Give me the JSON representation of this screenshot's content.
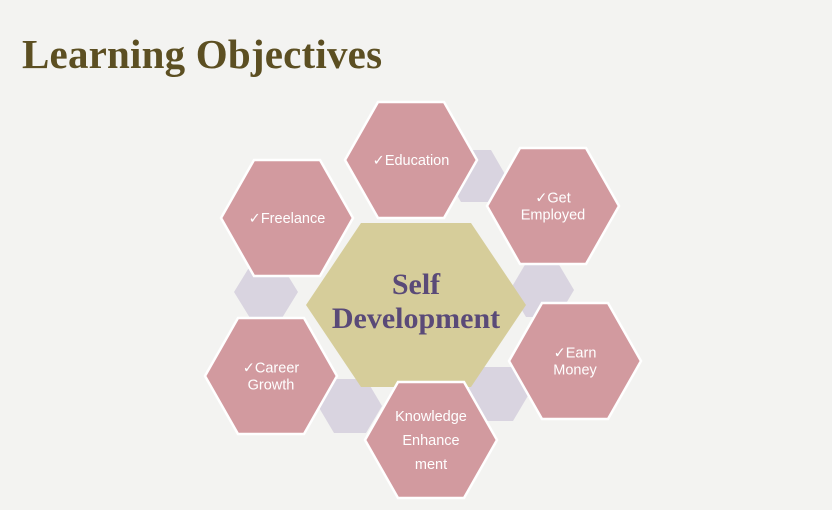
{
  "title": "Learning Objectives",
  "center": {
    "lines": [
      "Self",
      "Development"
    ]
  },
  "nodes": [
    {
      "id": "education",
      "lines": [
        "✓Education"
      ]
    },
    {
      "id": "get-employed",
      "lines": [
        "✓Get",
        "Employed"
      ]
    },
    {
      "id": "earn-money",
      "lines": [
        "✓Earn",
        "Money"
      ]
    },
    {
      "id": "knowledge",
      "lines": [
        "Knowledge",
        "Enhance",
        "ment"
      ]
    },
    {
      "id": "career",
      "lines": [
        "✓Career",
        "Growth"
      ]
    },
    {
      "id": "freelance",
      "lines": [
        "✓Freelance"
      ]
    }
  ],
  "colors": {
    "title": "#5c4f22",
    "background": "#f3f3f1",
    "center_fill": "#d6cd9a",
    "center_text": "#5a4a78",
    "node_fill": "#d29a9f",
    "node_text": "#ffffff",
    "connector_fill": "#d9d4e0"
  }
}
